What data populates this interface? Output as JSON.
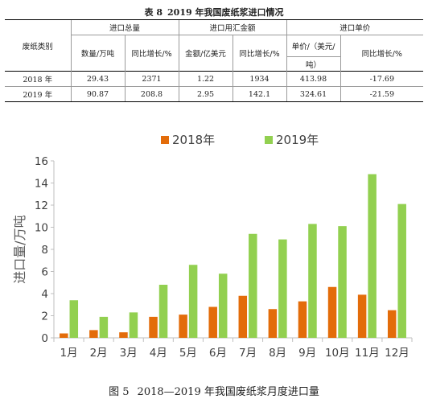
{
  "table": {
    "title_num": "表 8",
    "title_text": "2019 年我国废纸浆进口情况",
    "header_category": "废纸类别",
    "groups": [
      "进口总量",
      "进口用汇金额",
      "进口单价"
    ],
    "subheaders": [
      "数量/万吨",
      "同比增长/%",
      "金额/亿美元",
      "同比增长/%",
      "单价/（美元/",
      "同比增长/%"
    ],
    "unit_continuation": "吨）",
    "rows": [
      [
        "2018 年",
        "29.43",
        "2371",
        "1.22",
        "1934",
        "413.98",
        "-17.69"
      ],
      [
        "2019 年",
        "90.87",
        "208.8",
        "2.95",
        "142.1",
        "324.61",
        "-21.59"
      ]
    ]
  },
  "chart_data": {
    "type": "bar",
    "categories": [
      "1月",
      "2月",
      "3月",
      "4月",
      "5月",
      "6月",
      "7月",
      "8月",
      "9月",
      "10月",
      "11月",
      "12月"
    ],
    "series": [
      {
        "name": "2018年",
        "color": "#e36c0a",
        "values": [
          0.4,
          0.7,
          0.5,
          1.9,
          2.1,
          2.8,
          3.8,
          2.6,
          3.3,
          4.6,
          3.9,
          2.5
        ]
      },
      {
        "name": "2019年",
        "color": "#92d050",
        "values": [
          3.4,
          1.9,
          2.3,
          4.8,
          6.6,
          5.8,
          9.4,
          8.9,
          10.3,
          10.1,
          14.8,
          12.1
        ]
      }
    ],
    "ylabel": "进口量/万吨",
    "ylim": [
      0,
      16
    ],
    "yticks": [
      "0",
      "2",
      "4",
      "6",
      "8",
      "10",
      "12",
      "14",
      "16"
    ],
    "legend": "top-center",
    "grid": false
  },
  "caption": {
    "label": "图 5",
    "text": "2018—2019 年我国废纸浆月度进口量"
  }
}
